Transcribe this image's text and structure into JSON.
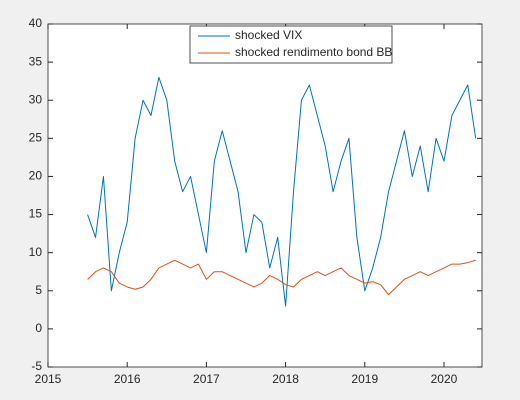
{
  "chart_data": {
    "type": "line",
    "x": [
      2015.5,
      2015.6,
      2015.7,
      2015.8,
      2015.9,
      2016.0,
      2016.1,
      2016.2,
      2016.3,
      2016.4,
      2016.5,
      2016.6,
      2016.7,
      2016.8,
      2016.9,
      2017.0,
      2017.1,
      2017.2,
      2017.3,
      2017.4,
      2017.5,
      2017.6,
      2017.7,
      2017.8,
      2017.9,
      2018.0,
      2018.1,
      2018.2,
      2018.3,
      2018.4,
      2018.5,
      2018.6,
      2018.7,
      2018.8,
      2018.9,
      2019.0,
      2019.1,
      2019.2,
      2019.3,
      2019.4,
      2019.5,
      2019.6,
      2019.7,
      2019.8,
      2019.9,
      2020.0,
      2020.1,
      2020.2,
      2020.3,
      2020.4
    ],
    "series": [
      {
        "name": "shocked VIX",
        "color": "#0072bd",
        "values": [
          15,
          12,
          20,
          5,
          10,
          14,
          25,
          30,
          28,
          33,
          30,
          22,
          18,
          20,
          15,
          10,
          22,
          26,
          22,
          18,
          10,
          15,
          14,
          8,
          12,
          3,
          18,
          30,
          32,
          28,
          24,
          18,
          22,
          25,
          12,
          5,
          8,
          12,
          18,
          22,
          26,
          20,
          24,
          18,
          25,
          22,
          28,
          30,
          32,
          25
        ]
      },
      {
        "name": "shocked rendimento bond BB",
        "color": "#d95319",
        "values": [
          6.5,
          7.5,
          8,
          7.5,
          6,
          5.5,
          5.2,
          5.5,
          6.5,
          8,
          8.5,
          9,
          8.5,
          8,
          8.5,
          6.5,
          7.5,
          7.5,
          7,
          6.5,
          6,
          5.5,
          6,
          7,
          6.5,
          5.8,
          5.5,
          6.5,
          7,
          7.5,
          7,
          7.5,
          8,
          7,
          6.5,
          6,
          6.2,
          5.8,
          4.5,
          5.5,
          6.5,
          7,
          7.5,
          7,
          7.5,
          8,
          8.5,
          8.5,
          8.7,
          9
        ]
      }
    ],
    "xlim": [
      2015,
      2020.48
    ],
    "xticks": [
      2015,
      2016,
      2017,
      2018,
      2019,
      2020
    ],
    "ylim": [
      -5,
      40
    ],
    "yticks": [
      -5,
      0,
      5,
      10,
      15,
      20,
      25,
      30,
      35,
      40
    ],
    "legend": "north"
  }
}
